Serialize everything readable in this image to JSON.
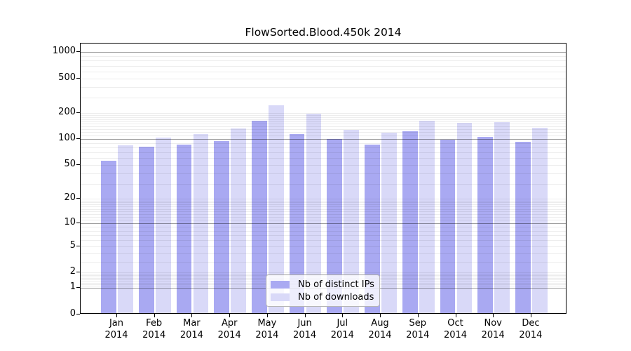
{
  "figure": {
    "title": "FlowSorted.Blood.450k 2014"
  },
  "legend": {
    "items": [
      {
        "label": "Nb of distinct IPs",
        "color": "#a9a9f2"
      },
      {
        "label": "Nb of downloads",
        "color": "#d9d9f8"
      }
    ]
  },
  "chart_data": {
    "type": "bar",
    "title": "FlowSorted.Blood.450k 2014",
    "xlabel": "",
    "ylabel": "",
    "categories": [
      "Jan 2014",
      "Feb 2014",
      "Mar 2014",
      "Apr 2014",
      "May 2014",
      "Jun 2014",
      "Jul 2014",
      "Aug 2014",
      "Sep 2014",
      "Oct 2014",
      "Nov 2014",
      "Dec 2014"
    ],
    "series": [
      {
        "name": "Nb of distinct IPs",
        "color": "#a9a9f2",
        "values": [
          55,
          79,
          84,
          92,
          160,
          112,
          98,
          84,
          120,
          96,
          103,
          90
        ]
      },
      {
        "name": "Nb of downloads",
        "color": "#d9d9f8",
        "values": [
          82,
          101,
          111,
          128,
          237,
          191,
          124,
          115,
          158,
          149,
          153,
          131
        ]
      }
    ],
    "yscale": "log1p",
    "ylim": [
      0,
      1200
    ],
    "y_ticks": [
      0,
      1,
      2,
      5,
      10,
      20,
      50,
      100,
      200,
      500,
      1000
    ],
    "grid": "horizontal-major-and-minor",
    "legend_position": "bottom-center",
    "bar_colors_note": "left bar of each pair = distinct IPs (darker), right bar = downloads (lighter)"
  }
}
